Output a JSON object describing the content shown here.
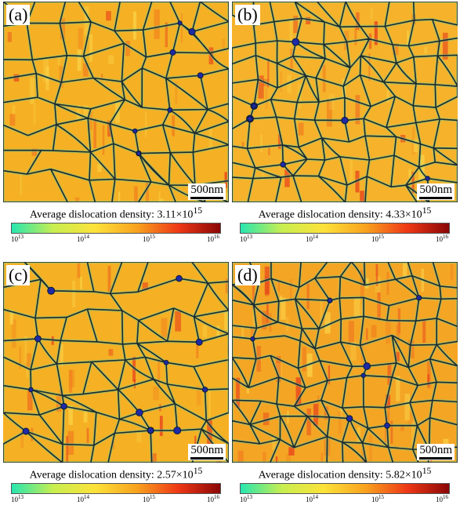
{
  "colors": {
    "base": "#f5b024",
    "grain_boundary": "#1c2a2e",
    "colorbar_stops": [
      "#27e6b0",
      "#c8ee50",
      "#fde23a",
      "#f8a21f",
      "#ee3816",
      "#8a0606"
    ]
  },
  "panels": [
    {
      "letter": "(a)",
      "scale_label": "500nm",
      "caption_prefix": "Average dislocation density: 3.11×10",
      "caption_exp": "15",
      "ticks": [
        {
          "base": "10",
          "exp": "13"
        },
        {
          "base": "10",
          "exp": "14"
        },
        {
          "base": "10",
          "exp": "15"
        },
        {
          "base": "10",
          "exp": "16"
        }
      ]
    },
    {
      "letter": "(b)",
      "scale_label": "500nm",
      "caption_prefix": "Average dislocation density: 4.33×10",
      "caption_exp": "15",
      "ticks": [
        {
          "base": "10",
          "exp": "13"
        },
        {
          "base": "10",
          "exp": "14"
        },
        {
          "base": "10",
          "exp": "15"
        },
        {
          "base": "10",
          "exp": "16"
        }
      ]
    },
    {
      "letter": "(c)",
      "scale_label": "500nm",
      "caption_prefix": "Average dislocation density: 2.57×10",
      "caption_exp": "15",
      "ticks": [
        {
          "base": "10",
          "exp": "13"
        },
        {
          "base": "10",
          "exp": "14"
        },
        {
          "base": "10",
          "exp": "15"
        },
        {
          "base": "10",
          "exp": "16"
        }
      ]
    },
    {
      "letter": "(d)",
      "scale_label": "500nm",
      "caption_prefix": "Average dislocation density: 5.82×10",
      "caption_exp": "15",
      "ticks": [
        {
          "base": "10",
          "exp": "13"
        },
        {
          "base": "10",
          "exp": "14"
        },
        {
          "base": "10",
          "exp": "15"
        },
        {
          "base": "10",
          "exp": "16"
        }
      ]
    }
  ]
}
